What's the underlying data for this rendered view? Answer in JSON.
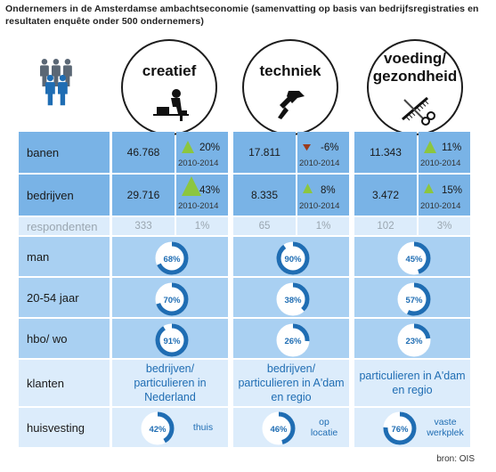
{
  "title": "Ondernemers in de Amsterdamse ambachtseconomie (samenvatting op basis van bedrijfsregistraties en resultaten enquête onder 500 ondernemers)",
  "icons": {
    "people": "people-group-icon",
    "creatief": "person-at-laptop-icon",
    "techniek": "hammer-icon",
    "voeding": "comb-scissors-icon"
  },
  "colors": {
    "row_dark": "#79b3e6",
    "row_mid": "#a9d0f2",
    "row_light": "#dcecfb",
    "donut_fill": "#1f6db3",
    "donut_rest": "#ffffff",
    "up": "#8cc63f",
    "down": "#9b3b1c",
    "circle_border": "#1c1c1c"
  },
  "sectors": [
    {
      "label_lines": [
        "creatief"
      ],
      "banen": "46.768",
      "banen_change": "20%",
      "banen_dir": "up",
      "bedrijven": "29.716",
      "bedrijven_change": "43%",
      "bedrijven_dir": "up",
      "respondenten": "333",
      "respondenten_pct": "1%",
      "man": 68,
      "man_label": "68%",
      "age": 70,
      "age_label": "70%",
      "hbo": 91,
      "hbo_label": "91%",
      "klanten_lines": [
        "bedrijven/",
        "particulieren in",
        "Nederland"
      ],
      "huisvesting": 42,
      "huisvesting_label": "42%",
      "huisvesting_lines": [
        "thuis"
      ]
    },
    {
      "label_lines": [
        "techniek"
      ],
      "banen": "17.811",
      "banen_change": "-6%",
      "banen_dir": "down",
      "bedrijven": "8.335",
      "bedrijven_change": "8%",
      "bedrijven_dir": "up",
      "respondenten": "65",
      "respondenten_pct": "1%",
      "man": 90,
      "man_label": "90%",
      "age": 38,
      "age_label": "38%",
      "hbo": 26,
      "hbo_label": "26%",
      "klanten_lines": [
        "bedrijven/",
        "particulieren in A'dam",
        "en regio"
      ],
      "huisvesting": 46,
      "huisvesting_label": "46%",
      "huisvesting_lines": [
        "op",
        "locatie"
      ]
    },
    {
      "label_lines": [
        "voeding/",
        "gezondheid"
      ],
      "banen": "11.343",
      "banen_change": "11%",
      "banen_dir": "up",
      "bedrijven": "3.472",
      "bedrijven_change": "15%",
      "bedrijven_dir": "up",
      "respondenten": "102",
      "respondenten_pct": "3%",
      "man": 45,
      "man_label": "45%",
      "age": 57,
      "age_label": "57%",
      "hbo": 23,
      "hbo_label": "23%",
      "klanten_lines": [
        "particulieren in A'dam",
        "en regio"
      ],
      "huisvesting": 76,
      "huisvesting_label": "76%",
      "huisvesting_lines": [
        "vaste",
        "werkplek"
      ]
    }
  ],
  "period": "2010-2014",
  "row_labels": {
    "banen": "banen",
    "bedrijven": "bedrijven",
    "respondenten": "respondenten",
    "man": "man",
    "age": "20-54 jaar",
    "hbo": "hbo/ wo",
    "klanten": "klanten",
    "huisvesting": "huisvesting"
  },
  "source": "bron: OIS"
}
